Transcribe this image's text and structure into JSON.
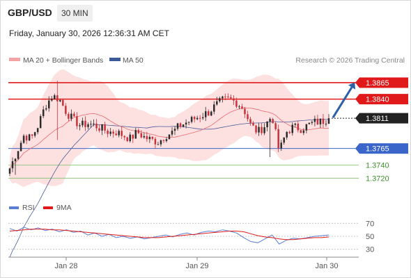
{
  "header": {
    "pair": "GBP/USD",
    "timeframe": "30 MIN",
    "timestamp": "Friday, January 30, 2026 12:36:31 AM CET"
  },
  "legend": {
    "ma20_bb": "MA 20 + Bollinger Bands",
    "ma50": "MA 50",
    "credit": "Research © 2026 Trading Central",
    "rsi": "RSI",
    "ma9": "9MA"
  },
  "colors": {
    "up": "#2b2b2b",
    "down": "#c9313a",
    "ma20": "#e8686e",
    "bb_fill": "#fde1e1",
    "ma50": "#4a5a9a",
    "resistance": "#e01a1a",
    "support": "#3a66c9",
    "target": "#7fbf6a",
    "arrow": "#2b5fa8",
    "rsi": "#5a7fd6",
    "rsi_ma": "#e01a1a"
  },
  "chart_data": [
    {
      "type": "candlestick",
      "title": "GBP/USD",
      "x_ticks": [
        "Jan 28",
        "Jan 29",
        "Jan 30"
      ],
      "ylim": [
        1.3695,
        1.3885
      ],
      "series": [
        {
          "name": "MA 20 + Bollinger Bands"
        },
        {
          "name": "MA 50"
        }
      ],
      "levels": [
        {
          "value": 1.3865,
          "label": "1.3865",
          "kind": "resistance"
        },
        {
          "value": 1.384,
          "label": "1.3840",
          "kind": "resistance"
        },
        {
          "value": 1.3811,
          "label": "1.3811",
          "kind": "last"
        },
        {
          "value": 1.3765,
          "label": "1.3765",
          "kind": "support"
        },
        {
          "value": 1.374,
          "label": "1.3740",
          "kind": "target"
        },
        {
          "value": 1.372,
          "label": "1.3720",
          "kind": "target"
        }
      ],
      "close_path": [
        1.3735,
        1.376,
        1.3785,
        1.378,
        1.38,
        1.383,
        1.3845,
        1.384,
        1.382,
        1.3808,
        1.38,
        1.3803,
        1.38,
        1.3795,
        1.379,
        1.379,
        1.3785,
        1.378,
        1.379,
        1.3782,
        1.3778,
        1.3775,
        1.3785,
        1.379,
        1.38,
        1.3805,
        1.381,
        1.3815,
        1.382,
        1.383,
        1.3838,
        1.384,
        1.3835,
        1.3825,
        1.38,
        1.379,
        1.38,
        1.3815,
        1.376,
        1.379,
        1.3798,
        1.3795,
        1.38,
        1.3805,
        1.3806,
        1.3811
      ]
    },
    {
      "type": "line",
      "title": "RSI",
      "y_ticks": [
        70,
        50,
        30
      ],
      "ylim": [
        20,
        80
      ],
      "series": [
        {
          "name": "RSI",
          "values": [
            62,
            58,
            64,
            60,
            63,
            59,
            61,
            57,
            60,
            56,
            58,
            52,
            55,
            50,
            53,
            48,
            50,
            47,
            49,
            46,
            48,
            50,
            52,
            49,
            53,
            55,
            52,
            56,
            58,
            57,
            60,
            58,
            55,
            48,
            42,
            40,
            46,
            52,
            38,
            44,
            47,
            46,
            48,
            50,
            51,
            52
          ]
        },
        {
          "name": "9MA",
          "values": [
            58,
            59,
            60,
            61,
            61,
            61,
            60,
            60,
            59,
            58,
            57,
            56,
            55,
            54,
            53,
            52,
            51,
            50,
            49,
            48,
            48,
            48,
            49,
            50,
            51,
            52,
            53,
            54,
            55,
            56,
            57,
            58,
            58,
            57,
            54,
            51,
            49,
            48,
            46,
            45,
            45,
            46,
            47,
            48,
            48,
            49
          ]
        }
      ]
    }
  ]
}
